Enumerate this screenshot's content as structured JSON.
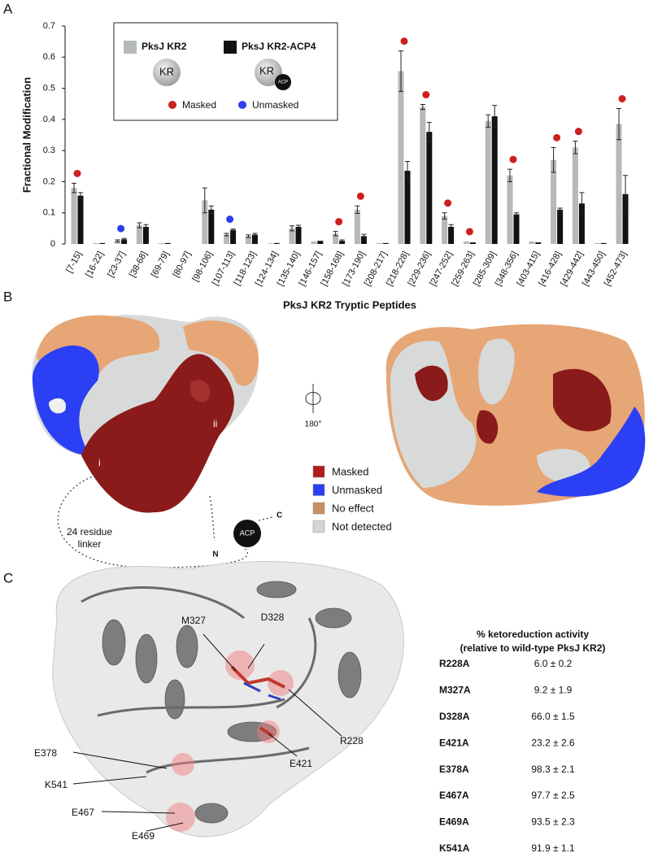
{
  "panels": {
    "a": "A",
    "b": "B",
    "c": "C"
  },
  "chart_data": {
    "type": "bar",
    "ylabel": "Fractional Modification",
    "xlabel": "PksJ KR2 Tryptic Peptides",
    "categories": [
      "[7-15]",
      "[16-22]",
      "[23-37]",
      "[38-68]",
      "[69-79]",
      "[80-97]",
      "[98-106]",
      "[107-113]",
      "[118-123]",
      "[124-134]",
      "[135-140]",
      "[146-157]",
      "[158-168]",
      "[173-190]",
      "[208-217]",
      "[218-228]",
      "[229-236]",
      "[247-252]",
      "[259-263]",
      "[285-309]",
      "[348-356]",
      "[403-415]",
      "[416-428]",
      "[429-442]",
      "[443-450]",
      "[452-473]"
    ],
    "series": [
      {
        "name": "PksJ KR2",
        "color": "#b4b9bb",
        "values": [
          0.18,
          0.003,
          0.01,
          0.06,
          0.003,
          0,
          0.14,
          0.03,
          0.025,
          0.002,
          0.05,
          0.008,
          0.033,
          0.11,
          0.003,
          0.555,
          0.44,
          0.09,
          0.008,
          0.395,
          0.22,
          0.008,
          0.27,
          0.31,
          0.003,
          0.385
        ],
        "errors": [
          0.015,
          null,
          0.003,
          0.008,
          null,
          null,
          0.04,
          0.004,
          0.004,
          null,
          0.008,
          null,
          0.007,
          0.012,
          null,
          0.065,
          0.008,
          0.01,
          null,
          0.02,
          0.02,
          null,
          0.04,
          0.02,
          null,
          0.05
        ]
      },
      {
        "name": "PksJ KR2-ACP4",
        "color": "#111111",
        "values": [
          0.155,
          0.003,
          0.015,
          0.055,
          0.003,
          0,
          0.11,
          0.045,
          0.03,
          0.003,
          0.055,
          0.01,
          0.01,
          0.025,
          0.003,
          0.235,
          0.36,
          0.055,
          0.005,
          0.41,
          0.095,
          0.005,
          0.11,
          0.13,
          0.003,
          0.16
        ],
        "errors": [
          0.01,
          null,
          0.003,
          0.007,
          null,
          null,
          0.012,
          0.003,
          0.004,
          null,
          0.005,
          null,
          0.003,
          0.006,
          null,
          0.03,
          0.03,
          0.007,
          null,
          0.035,
          0.005,
          null,
          0.005,
          0.035,
          null,
          0.06
        ]
      }
    ],
    "ylim": [
      0,
      0.7
    ],
    "yticks": [
      0,
      0.1,
      0.2,
      0.3,
      0.4,
      0.5,
      0.6,
      0.7
    ],
    "legend_icons": {
      "kr": "KR",
      "kr2": "KR",
      "acp": "ACP"
    },
    "status_legend": [
      {
        "name": "Masked",
        "color": "#cc2020"
      },
      {
        "name": "Unmasked",
        "color": "#2b3ff0"
      }
    ],
    "status": [
      "Masked",
      null,
      "Unmasked",
      null,
      null,
      null,
      null,
      "Unmasked",
      null,
      null,
      null,
      null,
      "Masked",
      "Masked",
      null,
      "Masked",
      "Masked",
      "Masked",
      "Masked",
      null,
      "Masked",
      null,
      "Masked",
      "Masked",
      null,
      "Masked"
    ]
  },
  "structure_b": {
    "labels": {
      "i": "i",
      "ii": "ii",
      "rotation": "180°",
      "linker": [
        "24 residue",
        "linker"
      ],
      "n": "N",
      "c": "C",
      "acp": "ACP"
    },
    "legend": [
      {
        "name": "Masked",
        "color": "#b01c1c"
      },
      {
        "name": "Unmasked",
        "color": "#2b3ff5"
      },
      {
        "name": "No effect",
        "color": "#c89060"
      },
      {
        "name": "Not detected",
        "color": "#d4d6d6"
      }
    ]
  },
  "structure_c": {
    "residues": [
      "M327",
      "D328",
      "E378",
      "K541",
      "E467",
      "E469",
      "E421",
      "R228"
    ]
  },
  "table": {
    "title": "% ketoreduction activity",
    "subtitle": "(relative to wild-type PksJ KR2)",
    "rows": [
      [
        "R228A",
        "6.0 ± 0.2"
      ],
      [
        "M327A",
        "9.2 ± 1.9"
      ],
      [
        "D328A",
        "66.0 ± 1.5"
      ],
      [
        "E421A",
        "23.2 ± 2.6"
      ],
      [
        "E378A",
        "98.3 ± 2.1"
      ],
      [
        "E467A",
        "97.7 ± 2.5"
      ],
      [
        "E469A",
        "93.5 ± 2.3"
      ],
      [
        "K541A",
        "91.9 ± 1.1"
      ]
    ]
  }
}
